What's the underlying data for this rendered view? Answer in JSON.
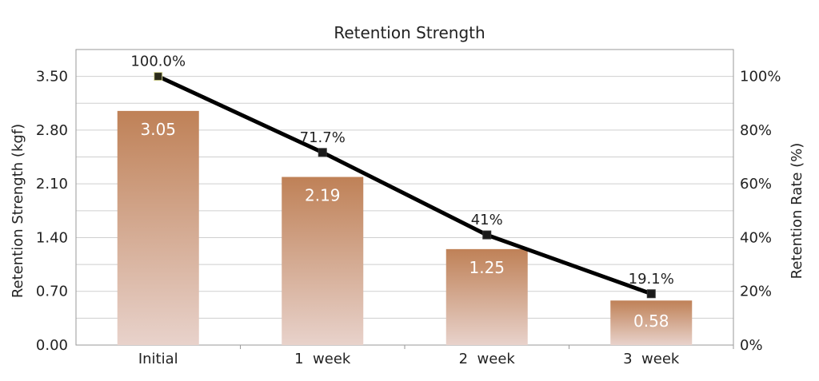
{
  "chart_data": {
    "type": "bar",
    "title": "Retention Strength",
    "categories": [
      "Initial",
      "1  week",
      "2  week",
      "3  week"
    ],
    "ylabel": "Retention Strength (kgf)",
    "y2label": "Retention Rate  (%)",
    "ylim": [
      0,
      3.85
    ],
    "yticks": [
      "0.00",
      "0.70",
      "1.40",
      "2.10",
      "2.80",
      "3.50"
    ],
    "y2lim": [
      0,
      110
    ],
    "y2ticks": [
      "0%",
      "20%",
      "40%",
      "60%",
      "80%",
      "100%"
    ],
    "grid": true,
    "series": [
      {
        "type": "bar",
        "axis": "left",
        "values": [
          3.05,
          2.19,
          1.25,
          0.58
        ],
        "labels": [
          "3.05",
          "2.19",
          "1.25",
          "0.58"
        ]
      },
      {
        "type": "line",
        "axis": "right",
        "values": [
          100.0,
          71.7,
          41,
          19.1
        ],
        "labels": [
          "100.0%",
          "71.7%",
          "41%",
          "19.1%"
        ]
      }
    ]
  },
  "colors": {
    "bar_top": "#bf8157",
    "bar_bottom": "#e8d2cb",
    "line": "#000000",
    "grid": "#cfcfcf",
    "axis": "#9a9a9a"
  }
}
